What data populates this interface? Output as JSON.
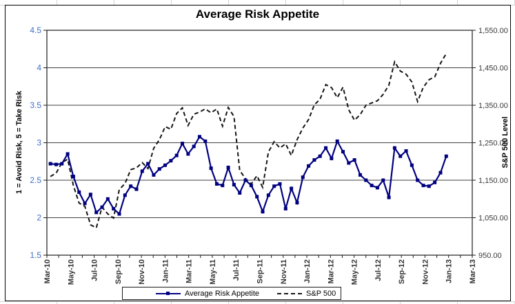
{
  "chart_data": {
    "type": "line",
    "title": "Average Risk Appetite",
    "sampling": "semi-monthly",
    "grid": true,
    "x_axis": {
      "start_label": "Mar-10",
      "end_label": "Mar-13",
      "months_total": 36,
      "minor_tick_every_months": 1,
      "tick_labels": [
        "Mar-10",
        "May-10",
        "Jul-10",
        "Sep-10",
        "Nov-10",
        "Jan-11",
        "Mar-11",
        "May-11",
        "Jul-11",
        "Sep-11",
        "Nov-11",
        "Jan-12",
        "Mar-12",
        "May-12",
        "Jul-12",
        "Sep-12",
        "Nov-12",
        "Jan-13",
        "Mar-13"
      ],
      "label_color": "#333333"
    },
    "left_axis": {
      "title": "1 = Avoid Risk, 5 = Take Risk",
      "min": 1.5,
      "max": 4.5,
      "step": 0.5,
      "tick_labels": [
        "4.5",
        "4",
        "3.5",
        "3",
        "2.5",
        "2",
        "1.5"
      ],
      "label_color": "#4070C8"
    },
    "right_axis": {
      "title": "S&P 500 Level",
      "min": 950,
      "max": 1550,
      "step": 100,
      "tick_labels": [
        "1,550.00",
        "1,450.00",
        "1,350.00",
        "1,250.00",
        "1,150.00",
        "1,050.00",
        "950.00"
      ],
      "label_color": "#3a3a3a"
    },
    "legend": {
      "position": "bottom",
      "entries": [
        "Average Risk Appetite",
        "S&P 500"
      ]
    },
    "first_point_month_offset": 0.3,
    "last_point_month_offset": 33.8,
    "series": [
      {
        "name": "Average Risk Appetite",
        "axis": "left",
        "color": "#000080",
        "line": "solid",
        "marker": "square",
        "values": [
          2.72,
          2.71,
          2.72,
          2.85,
          2.55,
          2.34,
          2.19,
          2.31,
          2.07,
          2.14,
          2.25,
          2.12,
          2.05,
          2.3,
          2.42,
          2.38,
          2.62,
          2.72,
          2.57,
          2.65,
          2.7,
          2.76,
          2.83,
          2.99,
          2.85,
          2.95,
          3.08,
          3.02,
          2.66,
          2.45,
          2.43,
          2.67,
          2.44,
          2.33,
          2.5,
          2.43,
          2.28,
          2.08,
          2.3,
          2.42,
          2.45,
          2.12,
          2.39,
          2.2,
          2.54,
          2.69,
          2.77,
          2.82,
          2.93,
          2.79,
          3.02,
          2.88,
          2.73,
          2.77,
          2.57,
          2.5,
          2.43,
          2.4,
          2.5,
          2.27,
          2.93,
          2.82,
          2.89,
          2.7,
          2.5,
          2.43,
          2.42,
          2.47,
          2.6,
          2.82
        ]
      },
      {
        "name": "S&P 500",
        "axis": "right",
        "color": "#141414",
        "line": "dashed",
        "marker": "none",
        "values": [
          1160,
          1169,
          1197,
          1206,
          1136,
          1089,
          1080,
          1031,
          1023,
          1078,
          1060,
          1049,
          1125,
          1141,
          1178,
          1183,
          1197,
          1181,
          1235,
          1258,
          1293,
          1286,
          1328,
          1343,
          1296,
          1326,
          1332,
          1340,
          1330,
          1340,
          1294,
          1344,
          1320,
          1176,
          1154,
          1140,
          1162,
          1131,
          1225,
          1253,
          1236,
          1247,
          1216,
          1258,
          1289,
          1312,
          1351,
          1366,
          1405,
          1397,
          1370,
          1398,
          1338,
          1310,
          1325,
          1350,
          1356,
          1362,
          1379,
          1404,
          1466,
          1441,
          1433,
          1412,
          1360,
          1398,
          1418,
          1426,
          1462,
          1488
        ]
      }
    ]
  },
  "colors": {
    "plot_border": "#1a1a1a",
    "gridline": "#404040",
    "background": "#ffffff",
    "risk_series": "#000080",
    "sp500_series": "#141414"
  }
}
